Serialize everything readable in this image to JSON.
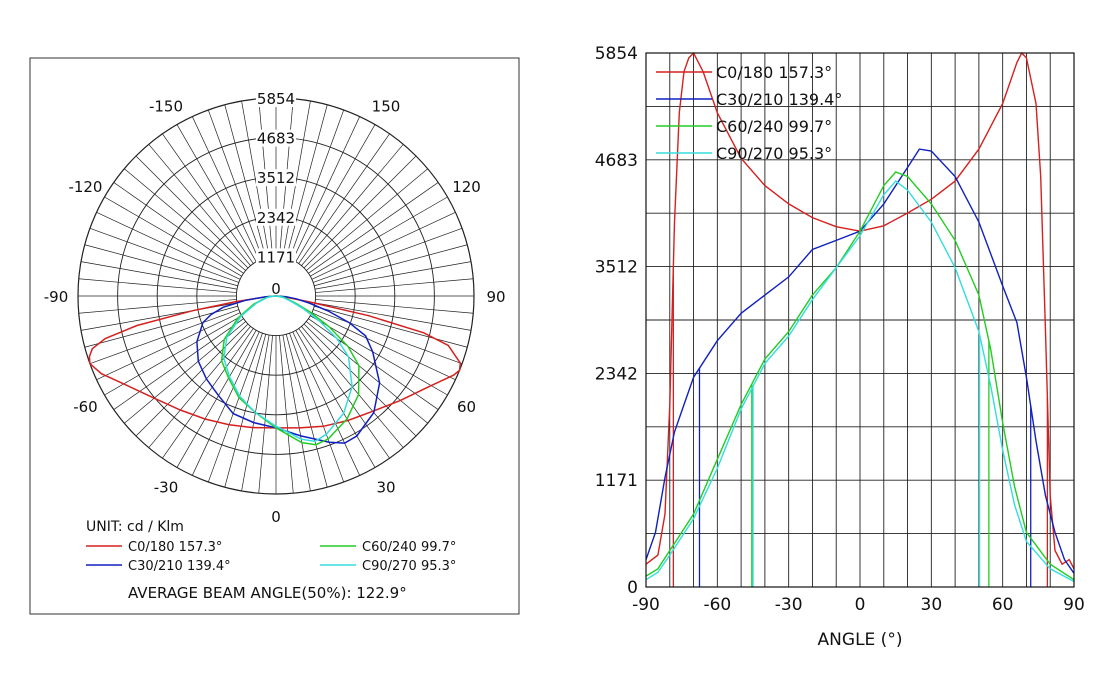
{
  "chart_data": [
    {
      "type": "polar",
      "unit_label": "UNIT: cd / Klm",
      "radial_ticks": [
        "1171",
        "2342",
        "3512",
        "4683",
        "5854"
      ],
      "radial_values": [
        1171,
        2342,
        3512,
        4683
      ],
      "r_max": 5854,
      "center_label": "0",
      "angle_labels": [
        {
          "text": "-150",
          "deg": -150
        },
        {
          "text": "150",
          "deg": 150
        },
        {
          "text": "-120",
          "deg": -120
        },
        {
          "text": "120",
          "deg": 120
        },
        {
          "text": "-90",
          "deg": -90
        },
        {
          "text": "90",
          "deg": 90
        },
        {
          "text": "-60",
          "deg": -60
        },
        {
          "text": "60",
          "deg": 60
        },
        {
          "text": "-30",
          "deg": -30
        },
        {
          "text": "30",
          "deg": 30
        },
        {
          "text": "0",
          "deg": 0
        }
      ],
      "series": [
        {
          "name": "C0/180 157.3°",
          "color": "#d62020",
          "points": [
            [
              -90,
              0
            ],
            [
              -85,
              300
            ],
            [
              -82,
              1200
            ],
            [
              -80,
              2500
            ],
            [
              -78,
              4200
            ],
            [
              -76,
              5200
            ],
            [
              -74,
              5650
            ],
            [
              -72,
              5800
            ],
            [
              -70,
              5854
            ],
            [
              -66,
              5650
            ],
            [
              -60,
              5200
            ],
            [
              -50,
              4700
            ],
            [
              -40,
              4400
            ],
            [
              -30,
              4200
            ],
            [
              -20,
              4050
            ],
            [
              -10,
              3950
            ],
            [
              0,
              3900
            ],
            [
              10,
              3960
            ],
            [
              20,
              4100
            ],
            [
              30,
              4250
            ],
            [
              40,
              4450
            ],
            [
              50,
              4800
            ],
            [
              60,
              5300
            ],
            [
              66,
              5750
            ],
            [
              68,
              5854
            ],
            [
              70,
              5800
            ],
            [
              74,
              5300
            ],
            [
              76,
              4500
            ],
            [
              78,
              2800
            ],
            [
              80,
              1000
            ],
            [
              82,
              400
            ],
            [
              85,
              200
            ],
            [
              90,
              0
            ]
          ]
        },
        {
          "name": "C30/210 139.4°",
          "color": "#1020c0",
          "points": [
            [
              -90,
              0
            ],
            [
              -86,
              300
            ],
            [
              -82,
              900
            ],
            [
              -78,
              1600
            ],
            [
              -74,
              2000
            ],
            [
              -70,
              2300
            ],
            [
              -60,
              2700
            ],
            [
              -50,
              3000
            ],
            [
              -40,
              3200
            ],
            [
              -30,
              3400
            ],
            [
              -20,
              3700
            ],
            [
              -10,
              3800
            ],
            [
              0,
              3900
            ],
            [
              10,
              4200
            ],
            [
              20,
              4600
            ],
            [
              25,
              4800
            ],
            [
              30,
              4780
            ],
            [
              40,
              4500
            ],
            [
              50,
              4000
            ],
            [
              60,
              3300
            ],
            [
              66,
              2900
            ],
            [
              70,
              2300
            ],
            [
              74,
              1600
            ],
            [
              78,
              1000
            ],
            [
              82,
              600
            ],
            [
              86,
              300
            ],
            [
              90,
              0
            ]
          ]
        },
        {
          "name": "C60/240 99.7°",
          "color": "#22cc22",
          "points": [
            [
              -90,
              0
            ],
            [
              -85,
              150
            ],
            [
              -80,
              300
            ],
            [
              -70,
              700
            ],
            [
              -60,
              1300
            ],
            [
              -50,
              2000
            ],
            [
              -40,
              2500
            ],
            [
              -30,
              2800
            ],
            [
              -20,
              3200
            ],
            [
              -10,
              3500
            ],
            [
              0,
              3900
            ],
            [
              10,
              4400
            ],
            [
              15,
              4550
            ],
            [
              20,
              4500
            ],
            [
              30,
              4200
            ],
            [
              40,
              3800
            ],
            [
              50,
              3200
            ],
            [
              55,
              2600
            ],
            [
              60,
              1800
            ],
            [
              65,
              1100
            ],
            [
              70,
              600
            ],
            [
              80,
              250
            ],
            [
              90,
              0
            ]
          ]
        },
        {
          "name": "C90/270 95.3°",
          "color": "#33dddd",
          "points": [
            [
              -90,
              0
            ],
            [
              -85,
              120
            ],
            [
              -80,
              260
            ],
            [
              -70,
              620
            ],
            [
              -60,
              1200
            ],
            [
              -50,
              1900
            ],
            [
              -40,
              2400
            ],
            [
              -30,
              2750
            ],
            [
              -20,
              3150
            ],
            [
              -10,
              3500
            ],
            [
              0,
              3850
            ],
            [
              10,
              4300
            ],
            [
              15,
              4450
            ],
            [
              20,
              4350
            ],
            [
              30,
              4000
            ],
            [
              40,
              3500
            ],
            [
              50,
              2800
            ],
            [
              55,
              2200
            ],
            [
              60,
              1500
            ],
            [
              65,
              900
            ],
            [
              70,
              500
            ],
            [
              80,
              200
            ],
            [
              90,
              0
            ]
          ]
        }
      ],
      "annotation": "AVERAGE BEAM ANGLE(50%): 122.9°"
    },
    {
      "type": "line",
      "xlabel": "ANGLE (°)",
      "xlim": [
        -90,
        90
      ],
      "ylim": [
        0,
        5854
      ],
      "x_ticks": [
        "-90",
        "-60",
        "-30",
        "0",
        "30",
        "60",
        "90"
      ],
      "x_tick_values": [
        -90,
        -60,
        -30,
        0,
        30,
        60,
        90
      ],
      "y_ticks": [
        "0",
        "1171",
        "2342",
        "3512",
        "4683",
        "5854"
      ],
      "y_tick_values": [
        0,
        1171,
        2342,
        3512,
        4683,
        5854
      ],
      "grid": true,
      "legend_placement": "top-left",
      "series": [
        {
          "name": "C0/180 157.3°",
          "color": "#d62020",
          "beam_edges": [
            -78.5,
            78.8
          ],
          "points": [
            [
              -90,
              250
            ],
            [
              -85,
              350
            ],
            [
              -82,
              800
            ],
            [
              -80,
              2000
            ],
            [
              -78,
              4000
            ],
            [
              -76,
              5200
            ],
            [
              -74,
              5650
            ],
            [
              -72,
              5800
            ],
            [
              -70,
              5854
            ],
            [
              -66,
              5650
            ],
            [
              -60,
              5200
            ],
            [
              -50,
              4700
            ],
            [
              -40,
              4400
            ],
            [
              -30,
              4200
            ],
            [
              -20,
              4050
            ],
            [
              -10,
              3950
            ],
            [
              0,
              3900
            ],
            [
              10,
              3960
            ],
            [
              20,
              4100
            ],
            [
              30,
              4250
            ],
            [
              40,
              4450
            ],
            [
              50,
              4800
            ],
            [
              60,
              5300
            ],
            [
              66,
              5750
            ],
            [
              68,
              5854
            ],
            [
              70,
              5800
            ],
            [
              74,
              5300
            ],
            [
              76,
              4500
            ],
            [
              78,
              2800
            ],
            [
              80,
              1000
            ],
            [
              82,
              400
            ],
            [
              85,
              250
            ],
            [
              88,
              300
            ],
            [
              90,
              200
            ]
          ]
        },
        {
          "name": "C30/210 139.4°",
          "color": "#1020c0",
          "beam_edges": [
            -67.5,
            71.8
          ],
          "points": [
            [
              -90,
              300
            ],
            [
              -86,
              600
            ],
            [
              -82,
              1200
            ],
            [
              -78,
              1700
            ],
            [
              -74,
              2000
            ],
            [
              -70,
              2300
            ],
            [
              -60,
              2700
            ],
            [
              -50,
              3000
            ],
            [
              -40,
              3200
            ],
            [
              -30,
              3400
            ],
            [
              -20,
              3700
            ],
            [
              -10,
              3800
            ],
            [
              0,
              3900
            ],
            [
              10,
              4200
            ],
            [
              20,
              4600
            ],
            [
              25,
              4800
            ],
            [
              30,
              4780
            ],
            [
              40,
              4500
            ],
            [
              50,
              4000
            ],
            [
              60,
              3300
            ],
            [
              66,
              2900
            ],
            [
              70,
              2300
            ],
            [
              74,
              1600
            ],
            [
              78,
              1000
            ],
            [
              82,
              600
            ],
            [
              86,
              300
            ],
            [
              90,
              150
            ]
          ]
        },
        {
          "name": "C60/240 99.7°",
          "color": "#22cc22",
          "beam_edges": [
            -45.5,
            54.2
          ],
          "points": [
            [
              -90,
              120
            ],
            [
              -85,
              200
            ],
            [
              -80,
              400
            ],
            [
              -70,
              800
            ],
            [
              -60,
              1400
            ],
            [
              -50,
              2000
            ],
            [
              -40,
              2500
            ],
            [
              -30,
              2800
            ],
            [
              -20,
              3200
            ],
            [
              -10,
              3500
            ],
            [
              0,
              3900
            ],
            [
              10,
              4400
            ],
            [
              15,
              4550
            ],
            [
              20,
              4500
            ],
            [
              30,
              4200
            ],
            [
              40,
              3800
            ],
            [
              50,
              3200
            ],
            [
              55,
              2600
            ],
            [
              60,
              1800
            ],
            [
              65,
              1100
            ],
            [
              70,
              600
            ],
            [
              80,
              250
            ],
            [
              90,
              80
            ]
          ]
        },
        {
          "name": "C90/270 95.3°",
          "color": "#33dddd",
          "beam_edges": [
            -45.0,
            50.3
          ],
          "points": [
            [
              -90,
              80
            ],
            [
              -85,
              160
            ],
            [
              -80,
              350
            ],
            [
              -70,
              750
            ],
            [
              -60,
              1300
            ],
            [
              -50,
              1950
            ],
            [
              -40,
              2450
            ],
            [
              -30,
              2750
            ],
            [
              -20,
              3150
            ],
            [
              -10,
              3500
            ],
            [
              0,
              3850
            ],
            [
              10,
              4300
            ],
            [
              15,
              4450
            ],
            [
              20,
              4350
            ],
            [
              30,
              4000
            ],
            [
              40,
              3500
            ],
            [
              50,
              2800
            ],
            [
              55,
              2200
            ],
            [
              60,
              1500
            ],
            [
              65,
              900
            ],
            [
              70,
              500
            ],
            [
              80,
              200
            ],
            [
              90,
              60
            ]
          ]
        }
      ]
    }
  ]
}
